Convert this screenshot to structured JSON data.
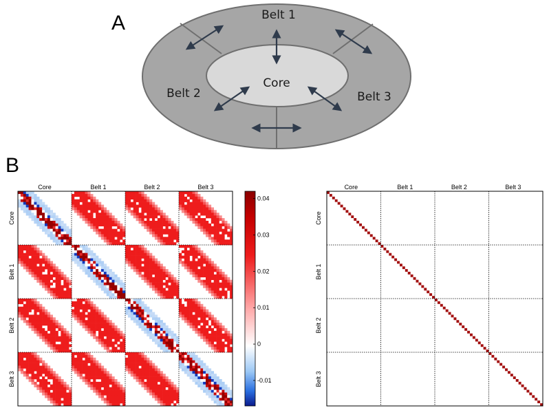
{
  "panels": {
    "a": {
      "letter": "A"
    },
    "b": {
      "letter": "B"
    }
  },
  "diagram": {
    "core_label": "Core",
    "belt_labels": [
      "Belt 1",
      "Belt 2",
      "Belt 3"
    ],
    "colors": {
      "outer_ring": "#a6a6a6",
      "core_fill": "#d9d9d9",
      "outline": "#6f6f6f",
      "arrow": "#2f3b4c"
    }
  },
  "chart_data": [
    {
      "type": "heatmap",
      "blocks": [
        "Core",
        "Belt 1",
        "Belt 2",
        "Belt 3"
      ],
      "block_size": 20,
      "colorbar": {
        "ticks": [
          0.04,
          0.03,
          0.02,
          0.01,
          0,
          -0.01
        ],
        "range": [
          -0.017,
          0.042
        ]
      },
      "colors": {
        "low": "#0a1a8c",
        "mid": "#ffffff",
        "high": "#8b0000"
      }
    },
    {
      "type": "heatmap",
      "blocks": [
        "Core",
        "Belt 1",
        "Belt 2",
        "Belt 3"
      ],
      "block_size": 20,
      "colors": {
        "diagonal": "#a31010",
        "background": "#ffffff"
      }
    }
  ]
}
